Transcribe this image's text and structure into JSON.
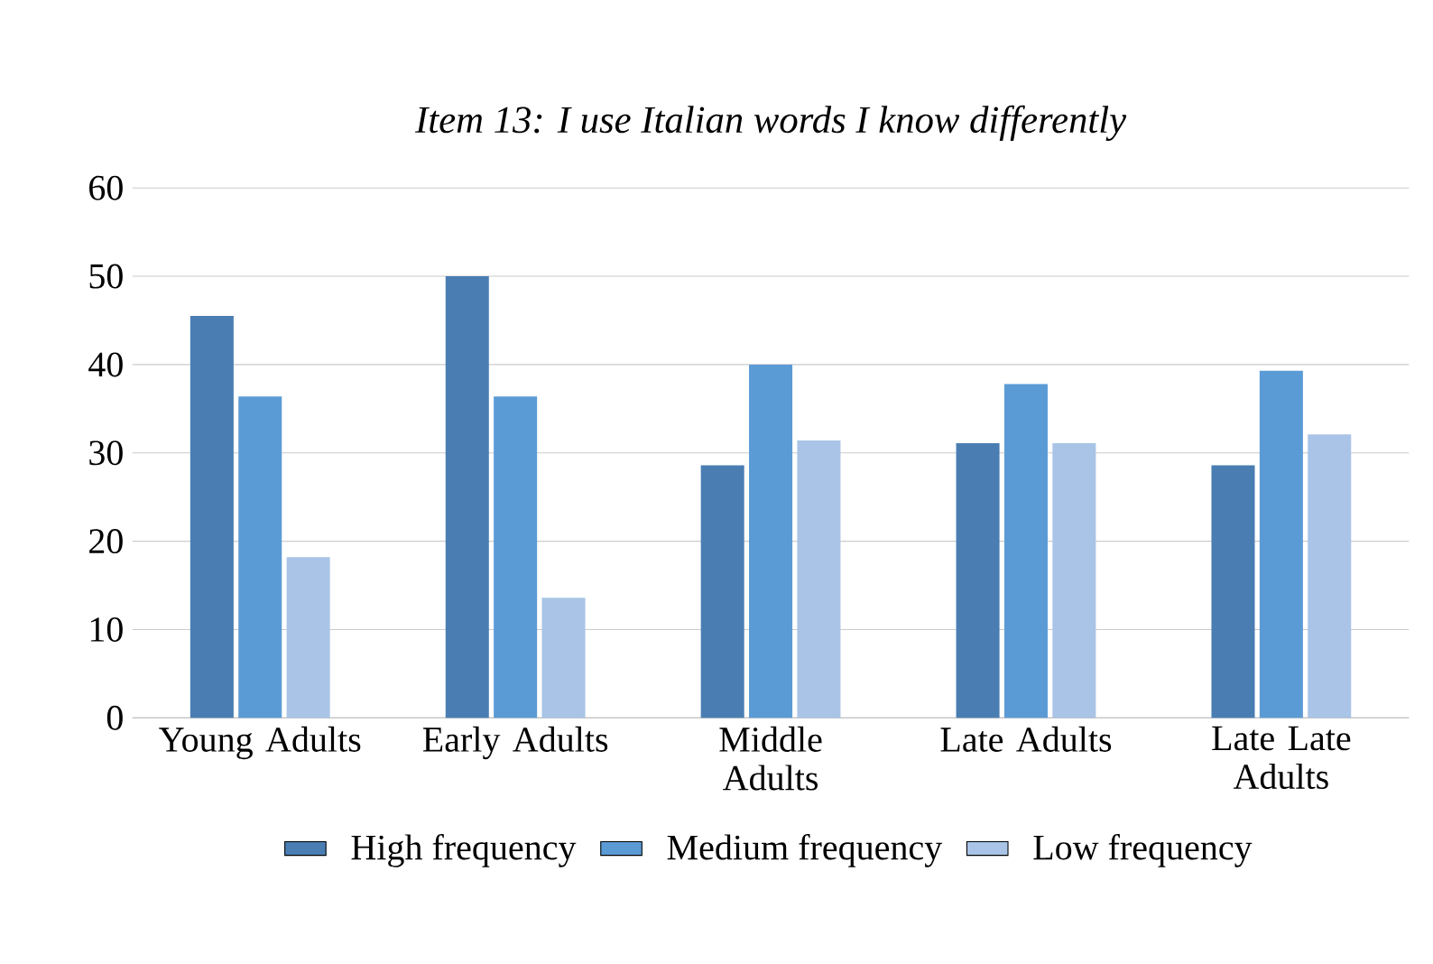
{
  "chart_data": {
    "type": "bar",
    "title": "Item 13: I use Italian words I know differently",
    "categories": [
      "Young Adults",
      "Early Adults",
      "Middle Adults",
      "Late Adults",
      "Late Late Adults"
    ],
    "series": [
      {
        "name": "High frequency",
        "color": "#4a7eb3",
        "values": [
          45.5,
          50,
          28.6,
          31.1,
          28.6
        ]
      },
      {
        "name": "Medium frequency",
        "color": "#5b9bd5",
        "values": [
          36.4,
          36.4,
          40,
          37.8,
          39.3
        ]
      },
      {
        "name": "Low frequency",
        "color": "#a9c4e6",
        "values": [
          18.2,
          13.6,
          31.4,
          31.1,
          32.1
        ]
      }
    ],
    "ylim": [
      0,
      60
    ],
    "yticks": [
      0,
      10,
      20,
      30,
      40,
      50,
      60
    ],
    "grid": "y",
    "legend": "bottom"
  }
}
